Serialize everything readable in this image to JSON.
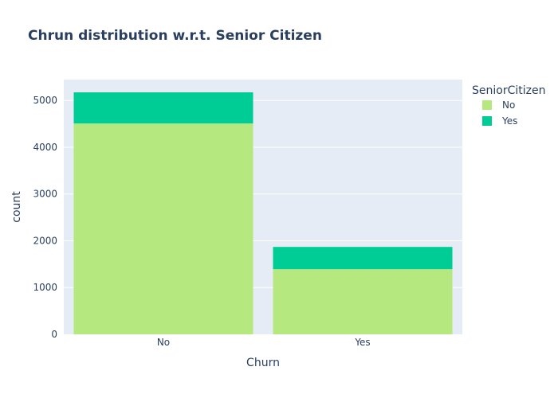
{
  "chart_data": {
    "type": "bar",
    "barmode": "stack",
    "title": "Chrun distribution w.r.t. Senior Citizen",
    "xlabel": "Churn",
    "ylabel": "count",
    "categories": [
      "No",
      "Yes"
    ],
    "series": [
      {
        "name": "No",
        "values": [
          4508,
          1393
        ],
        "color": "#b6e880"
      },
      {
        "name": "Yes",
        "values": [
          666,
          476
        ],
        "color": "#00cc96"
      }
    ],
    "ylim": [
      0,
      5446
    ],
    "yticks": [
      0,
      1000,
      2000,
      3000,
      4000,
      5000
    ],
    "grid": true,
    "legend": {
      "title": "SeniorCitizen",
      "placement": "top-right"
    },
    "colors": {
      "plot_bg": "#e5ecf6",
      "text": "#2a3f5f",
      "grid": "#ffffff"
    }
  }
}
